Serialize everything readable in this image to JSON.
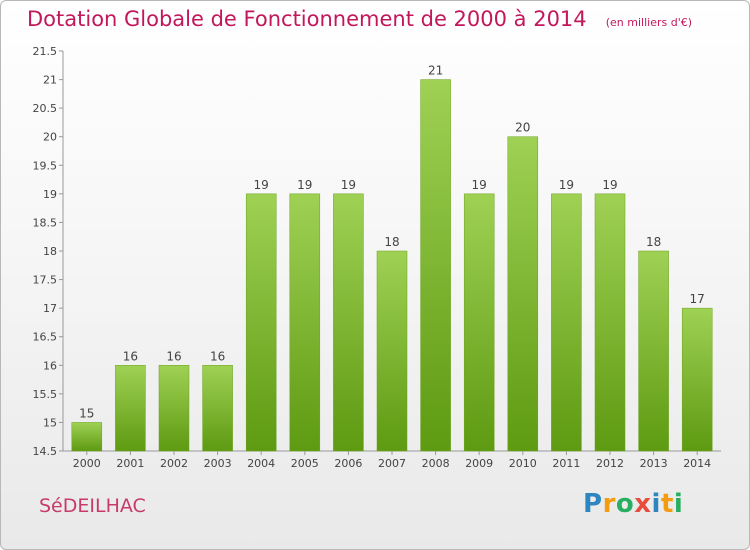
{
  "chart_data": {
    "type": "bar",
    "title": "Dotation Globale de Fonctionnement de 2000 à 2014",
    "subtitle": "(en milliers d'€)",
    "categories": [
      "2000",
      "2001",
      "2002",
      "2003",
      "2004",
      "2005",
      "2006",
      "2007",
      "2008",
      "2009",
      "2010",
      "2011",
      "2012",
      "2013",
      "2014"
    ],
    "values": [
      15,
      16,
      16,
      16,
      19,
      19,
      19,
      18,
      21,
      19,
      20,
      19,
      19,
      18,
      17
    ],
    "xlabel": "",
    "ylabel": "",
    "ylim": [
      14.5,
      21.5
    ],
    "yticks": [
      14.5,
      15,
      15.5,
      16,
      16.5,
      17,
      17.5,
      18,
      18.5,
      19,
      19.5,
      20,
      20.5,
      21,
      21.5
    ],
    "grid": false,
    "colors": {
      "bar_top": "#9fd154",
      "bar_bottom": "#5e9a12",
      "title": "#c2185b"
    }
  },
  "commune": "SéDEILHAC",
  "logo": {
    "text": "Proxiti",
    "letters": [
      {
        "ch": "P",
        "color": "#2e86c1"
      },
      {
        "ch": "r",
        "color": "#f39c12"
      },
      {
        "ch": "o",
        "color": "#27ae60"
      },
      {
        "ch": "x",
        "color": "#e74c3c"
      },
      {
        "ch": "i",
        "color": "#2e86c1"
      },
      {
        "ch": "t",
        "color": "#f39c12"
      },
      {
        "ch": "i",
        "color": "#27ae60"
      }
    ]
  }
}
